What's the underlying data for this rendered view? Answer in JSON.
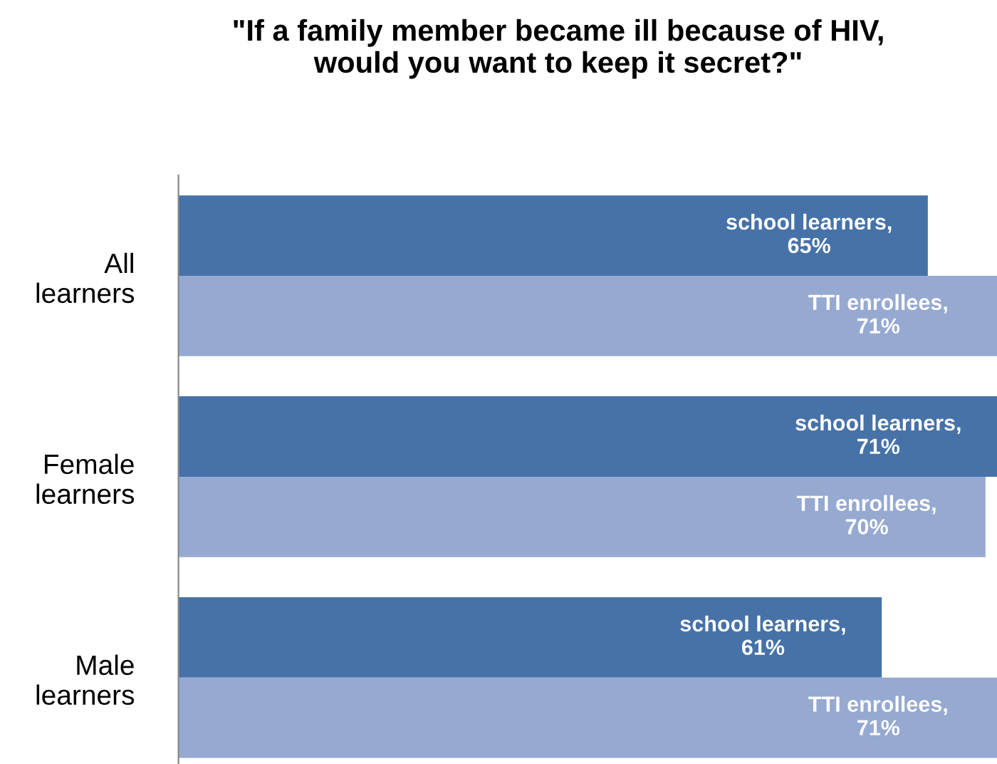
{
  "chart_data": {
    "type": "bar",
    "orientation": "horizontal",
    "title": "\"If a family member became ill because of HIV,\nwould you want to keep it secret?\"",
    "categories": [
      "All\nlearners",
      "Female\nlearners",
      "Male\nlearners"
    ],
    "series": [
      {
        "color": "#4672a8",
        "values": [
          65,
          71,
          61
        ],
        "value_labels": [
          "school learners,\n65%",
          "school learners,\n71%",
          "school learners,\n61%"
        ]
      },
      {
        "color": "#95a9d1",
        "values": [
          71,
          70,
          71
        ],
        "value_labels": [
          "TTI enrollees,\n71%",
          "TTI enrollees,\n70%",
          "TTI enrollees,\n71%"
        ]
      }
    ],
    "grid": false,
    "legend": false,
    "tick_labels": "y"
  }
}
